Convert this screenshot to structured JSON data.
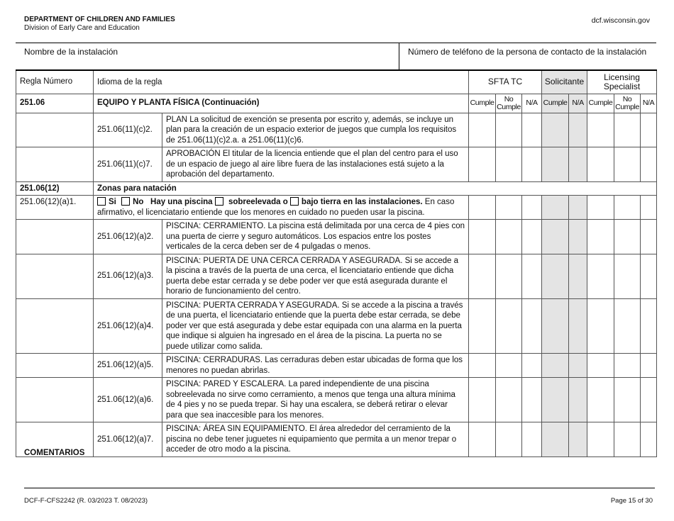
{
  "header": {
    "department": "DEPARTMENT OF CHILDREN AND FAMILIES",
    "division": "Division of Early Care and Education",
    "website": "dcf.wisconsin.gov"
  },
  "facility": {
    "name_label": "Nombre de la instalación",
    "phone_label": "Número de teléfono de la persona de contacto de la instalación"
  },
  "table": {
    "col_rule_number": "Regla Número",
    "col_rule_language": "Idioma de la regla",
    "group_sfta": "SFTA TC",
    "group_applicant": "Solicitante",
    "group_specialist": "Licensing Specialist",
    "cumple": "Cumple",
    "no_cumple": "No Cumple",
    "na": "N/A",
    "section1": {
      "number": "251.06",
      "title": "EQUIPO Y PLANTA FÍSICA (Continuación)"
    },
    "rows1": [
      {
        "sub": "251.06(11)(c)2.",
        "text": "PLAN La solicitud de exención se presenta por escrito y, además, se incluye un plan para la creación de un espacio exterior de juegos que cumpla los requisitos de 251.06(11)(c)2.a. a 251.06(11)(c)6."
      },
      {
        "sub": "251.06(11)(c)7.",
        "text": "APROBACIÓN El titular de la licencia entiende que el plan del centro para el uso de un espacio de juego al aire libre fuera de las instalaciones está sujeto a la aprobación del departamento."
      }
    ],
    "section2": {
      "number": "251.06(12)",
      "title": "Zonas para natación"
    },
    "pool_row": {
      "number": "251.06(12)(a)1.",
      "si": "Si",
      "no": "No",
      "q1": "Hay una piscina",
      "q2": "sobreelevada o",
      "q3": "bajo tierra en las instalaciones.",
      "rest": "En caso afirmativo, el licenciatario entiende que los menores en cuidado no pueden usar la piscina."
    },
    "rows2": [
      {
        "sub": "251.06(12)(a)2.",
        "text": "PISCINA: CERRAMIENTO. La piscina está delimitada por una cerca de 4 pies con una puerta de cierre y seguro automáticos. Los espacios entre los postes verticales de la cerca deben ser de 4 pulgadas o menos."
      },
      {
        "sub": "251.06(12)(a)3.",
        "text": "PISCINA: PUERTA DE UNA CERCA CERRADA Y ASEGURADA. Si se accede a la piscina a través de la puerta de una cerca, el licenciatario entiende que dicha puerta debe estar cerrada y se debe poder ver que está asegurada durante el horario de funcionamiento del centro."
      },
      {
        "sub": "251.06(12)(a)4.",
        "text": "PISCINA: PUERTA CERRADA Y ASEGURADA. Si se accede a la piscina a través de una puerta, el licenciatario entiende que la puerta debe estar cerrada, se debe poder ver que está asegurada y debe estar equipada con una alarma en la puerta que indique si alguien ha ingresado en el área de la piscina. La puerta no se puede utilizar como salida."
      },
      {
        "sub": "251.06(12)(a)5.",
        "text": "PISCINA: CERRADURAS. Las cerraduras deben estar ubicadas de forma que los menores no puedan abrirlas."
      },
      {
        "sub": "251.06(12)(a)6.",
        "text": "PISCINA: PARED Y ESCALERA. La pared independiente de una piscina sobreelevada no sirve como cerramiento, a menos que tenga una altura mínima de 4 pies y no se pueda trepar. Si hay una escalera, se deberá retirar o elevar para que sea inaccesible para los menores."
      },
      {
        "sub": "251.06(12)(a)7.",
        "text": "PISCINA: ÁREA SIN EQUIPAMIENTO. El área alrededor del cerramiento de la piscina no debe tener juguetes ni equipamiento que permita a un menor trepar o acceder de otro modo a la piscina."
      }
    ]
  },
  "comments_label": "COMENTARIOS",
  "footer": {
    "form_id": "DCF-F-CFS2242 (R. 03/2023 T. 08/2023)",
    "page": "Page 15 of 30"
  }
}
